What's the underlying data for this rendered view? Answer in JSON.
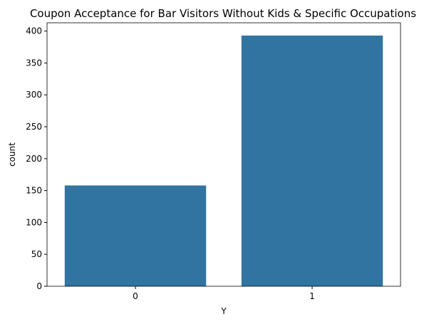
{
  "chart_data": {
    "type": "bar",
    "title": "Coupon Acceptance for Bar Visitors Without Kids & Specific Occupations",
    "xlabel": "Y",
    "ylabel": "count",
    "categories": [
      "0",
      "1"
    ],
    "values": [
      158,
      393
    ],
    "ylim": [
      0,
      413
    ],
    "yticks": [
      0,
      50,
      100,
      150,
      200,
      250,
      300,
      350,
      400
    ],
    "grid": false,
    "legend": "none",
    "bar_color": "#3274a1"
  }
}
